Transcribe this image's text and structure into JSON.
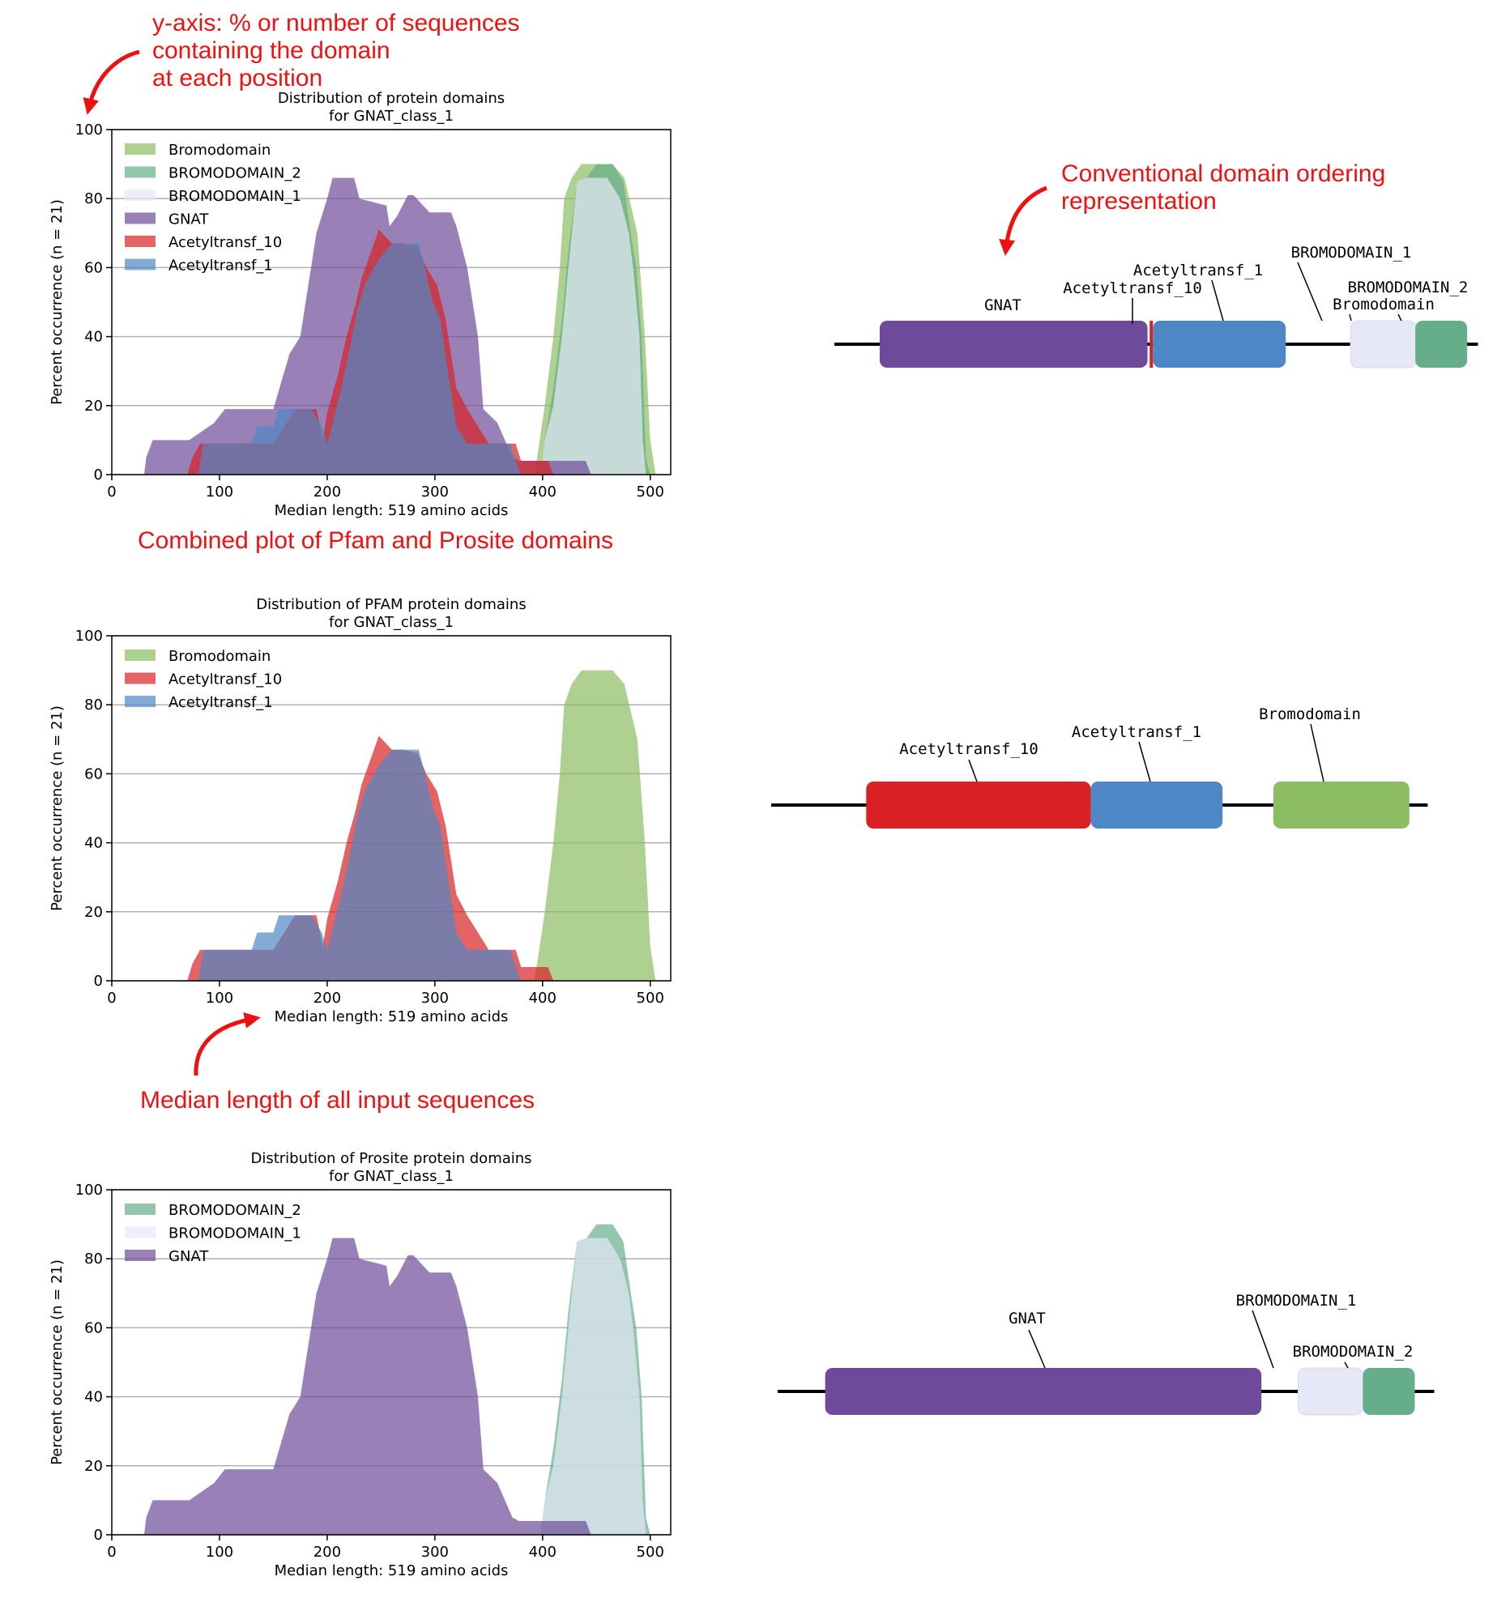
{
  "annotations": {
    "yaxis": [
      "y-axis: % or number of sequences",
      "containing the domain",
      "at each position"
    ],
    "combined": "Combined plot of Pfam and Prosite domains",
    "conventional": [
      "Conventional domain ordering",
      "representation"
    ],
    "median": "Median length of all input sequences"
  },
  "colors": {
    "Bromodomain": "#8cbd63",
    "BROMODOMAIN_2": "#66ae8a",
    "BROMODOMAIN_1": "#e6e8f8",
    "GNAT": "#6e4b9a",
    "Acetyltransf_10": "#d92123",
    "Acetyltransf_1": "#4e87c5"
  },
  "chart_data": [
    {
      "type": "area",
      "title": "Distribution of protein domains",
      "subtitle": "for GNAT_class_1",
      "xlabel": "Median length: 519 amino acids",
      "ylabel": "Percent occurrence (n = 21)",
      "xlim": [
        0,
        519
      ],
      "ylim": [
        0,
        100
      ],
      "xticks": [
        0,
        100,
        200,
        300,
        400,
        500
      ],
      "yticks": [
        0,
        20,
        40,
        60,
        80,
        100
      ],
      "grid": "y",
      "legend": "top-left",
      "series": [
        {
          "name": "Bromodomain",
          "x": [
            392,
            395,
            402,
            410,
            416,
            420,
            427,
            436,
            445,
            450,
            465,
            476,
            488,
            495,
            500,
            505
          ],
          "y": [
            0,
            5,
            20,
            40,
            60,
            80,
            86,
            90,
            90,
            90,
            90,
            86,
            70,
            40,
            10,
            0
          ]
        },
        {
          "name": "BROMODOMAIN_2",
          "x": [
            398,
            402,
            410,
            418,
            424,
            432,
            441,
            450,
            465,
            475,
            482,
            487,
            492,
            496,
            500
          ],
          "y": [
            0,
            10,
            25,
            45,
            65,
            85,
            86,
            90,
            90,
            85,
            70,
            60,
            40,
            5,
            0
          ]
        },
        {
          "name": "BROMODOMAIN_1",
          "x": [
            398,
            402,
            410,
            418,
            424,
            432,
            441,
            460,
            472,
            480,
            484,
            490,
            493,
            496
          ],
          "y": [
            0,
            10,
            20,
            40,
            60,
            85,
            86,
            86,
            80,
            70,
            60,
            40,
            10,
            0
          ]
        },
        {
          "name": "GNAT",
          "x": [
            30,
            32,
            38,
            72,
            95,
            105,
            150,
            165,
            175,
            180,
            185,
            190,
            200,
            205,
            225,
            230,
            255,
            258,
            265,
            275,
            280,
            295,
            315,
            320,
            330,
            335,
            340,
            345,
            358,
            365,
            372,
            378,
            380,
            440,
            445
          ],
          "y": [
            0,
            5,
            10,
            10,
            15,
            19,
            19,
            35,
            40,
            50,
            60,
            70,
            80,
            86,
            86,
            80,
            78,
            72,
            75,
            81,
            81,
            76,
            76,
            72,
            60,
            50,
            40,
            19,
            15,
            10,
            5,
            4,
            4,
            4,
            0
          ]
        },
        {
          "name": "Acetyltransf_10",
          "x": [
            70,
            75,
            82,
            92,
            100,
            120,
            150,
            170,
            190,
            196,
            200,
            210,
            218,
            226,
            232,
            240,
            248,
            260,
            270,
            284,
            292,
            302,
            310,
            320,
            330,
            350,
            365,
            375,
            380,
            398,
            405,
            410
          ],
          "y": [
            0,
            5,
            9,
            9,
            9,
            9,
            9,
            19,
            19,
            10,
            18,
            29,
            40,
            49,
            57,
            64,
            71,
            67,
            67,
            66,
            60,
            55,
            45,
            25,
            19,
            9,
            9,
            9,
            4,
            4,
            4,
            0
          ]
        },
        {
          "name": "Acetyltransf_1",
          "x": [
            80,
            85,
            130,
            135,
            150,
            155,
            170,
            185,
            195,
            200,
            213,
            222,
            228,
            235,
            247,
            260,
            285,
            290,
            298,
            305,
            313,
            320,
            330,
            340,
            370,
            375,
            380
          ],
          "y": [
            0,
            9,
            9,
            14,
            14,
            19,
            19,
            19,
            14,
            9,
            25,
            38,
            48,
            55,
            62,
            67,
            67,
            61,
            50,
            45,
            28,
            14,
            9,
            9,
            9,
            4,
            0
          ]
        }
      ]
    },
    {
      "type": "area",
      "title": "Distribution of PFAM protein domains",
      "subtitle": "for GNAT_class_1",
      "xlabel": "Median length: 519 amino acids",
      "ylabel": "Percent occurrence (n = 21)",
      "xlim": [
        0,
        519
      ],
      "ylim": [
        0,
        100
      ],
      "xticks": [
        0,
        100,
        200,
        300,
        400,
        500
      ],
      "yticks": [
        0,
        20,
        40,
        60,
        80,
        100
      ],
      "grid": "y",
      "legend": "top-left",
      "series": [
        {
          "name": "Bromodomain",
          "x": [
            392,
            395,
            402,
            410,
            416,
            420,
            427,
            436,
            445,
            450,
            465,
            476,
            488,
            495,
            500,
            505
          ],
          "y": [
            0,
            5,
            20,
            40,
            60,
            80,
            86,
            90,
            90,
            90,
            90,
            86,
            70,
            40,
            10,
            0
          ]
        },
        {
          "name": "Acetyltransf_10",
          "x": [
            70,
            75,
            82,
            92,
            100,
            120,
            150,
            170,
            190,
            196,
            200,
            210,
            218,
            226,
            232,
            240,
            248,
            260,
            270,
            284,
            292,
            302,
            310,
            320,
            330,
            350,
            365,
            375,
            380,
            398,
            405,
            410
          ],
          "y": [
            0,
            5,
            9,
            9,
            9,
            9,
            9,
            19,
            19,
            10,
            18,
            29,
            40,
            49,
            57,
            64,
            71,
            67,
            67,
            66,
            60,
            55,
            45,
            25,
            19,
            9,
            9,
            9,
            4,
            4,
            4,
            0
          ]
        },
        {
          "name": "Acetyltransf_1",
          "x": [
            80,
            85,
            130,
            135,
            150,
            155,
            170,
            185,
            195,
            200,
            213,
            222,
            228,
            235,
            247,
            260,
            285,
            290,
            298,
            305,
            313,
            320,
            330,
            340,
            370,
            375,
            380
          ],
          "y": [
            0,
            9,
            9,
            14,
            14,
            19,
            19,
            19,
            14,
            9,
            25,
            38,
            48,
            55,
            62,
            67,
            67,
            61,
            50,
            45,
            28,
            14,
            9,
            9,
            9,
            4,
            0
          ]
        }
      ]
    },
    {
      "type": "area",
      "title": "Distribution of Prosite protein domains",
      "subtitle": "for GNAT_class_1",
      "xlabel": "Median length: 519 amino acids",
      "ylabel": "Percent occurrence (n = 21)",
      "xlim": [
        0,
        519
      ],
      "ylim": [
        0,
        100
      ],
      "xticks": [
        0,
        100,
        200,
        300,
        400,
        500
      ],
      "yticks": [
        0,
        20,
        40,
        60,
        80,
        100
      ],
      "grid": "y",
      "legend": "top-left",
      "series": [
        {
          "name": "BROMODOMAIN_2",
          "x": [
            398,
            402,
            410,
            418,
            424,
            432,
            441,
            450,
            465,
            475,
            482,
            487,
            492,
            496,
            500
          ],
          "y": [
            0,
            10,
            25,
            45,
            65,
            85,
            86,
            90,
            90,
            85,
            70,
            60,
            40,
            5,
            0
          ]
        },
        {
          "name": "BROMODOMAIN_1",
          "x": [
            398,
            402,
            410,
            418,
            424,
            432,
            441,
            460,
            472,
            480,
            484,
            490,
            493,
            496
          ],
          "y": [
            0,
            10,
            20,
            40,
            60,
            85,
            86,
            86,
            80,
            70,
            60,
            40,
            10,
            0
          ]
        },
        {
          "name": "GNAT",
          "x": [
            30,
            32,
            38,
            72,
            95,
            105,
            150,
            165,
            175,
            180,
            185,
            190,
            200,
            205,
            225,
            230,
            255,
            258,
            265,
            275,
            280,
            295,
            315,
            320,
            330,
            335,
            340,
            345,
            358,
            365,
            372,
            378,
            380,
            440,
            445
          ],
          "y": [
            0,
            5,
            10,
            10,
            15,
            19,
            19,
            35,
            40,
            50,
            60,
            70,
            80,
            86,
            86,
            80,
            78,
            72,
            75,
            81,
            81,
            76,
            76,
            72,
            60,
            50,
            40,
            19,
            15,
            10,
            5,
            4,
            4,
            4,
            0
          ]
        }
      ]
    }
  ],
  "domain_diagrams": [
    {
      "domains": [
        {
          "name": "GNAT",
          "start": 42,
          "end": 290,
          "color": "GNAT",
          "label": "GNAT"
        },
        {
          "name": "Acetyltransf_10",
          "start": 292,
          "end": 295,
          "color": "Acetyltransf_10",
          "label": "Acetyltransf_10"
        },
        {
          "name": "Acetyltransf_1",
          "start": 295,
          "end": 418,
          "color": "Acetyltransf_1",
          "label": "Acetyltransf_1"
        },
        {
          "name": "BROMODOMAIN_1",
          "start": 478,
          "end": 539,
          "color": "BROMODOMAIN_1",
          "label": "BROMODOMAIN_1"
        },
        {
          "name": "BROMODOMAIN_2",
          "start": 538,
          "end": 586,
          "color": "BROMODOMAIN_2",
          "label": "BROMODOMAIN_2"
        },
        {
          "name": "Bromodomain",
          "start": 538,
          "end": 586,
          "color": "BROMODOMAIN_2",
          "label": "Bromodomain"
        }
      ]
    },
    {
      "domains": [
        {
          "name": "Acetyltransf_10",
          "start": 88,
          "end": 296,
          "color": "Acetyltransf_10",
          "label": "Acetyltransf_10"
        },
        {
          "name": "Acetyltransf_1",
          "start": 296,
          "end": 418,
          "color": "Acetyltransf_1",
          "label": "Acetyltransf_1"
        },
        {
          "name": "Bromodomain",
          "start": 465,
          "end": 591,
          "color": "Bromodomain",
          "label": "Bromodomain"
        }
      ]
    },
    {
      "domains": [
        {
          "name": "GNAT",
          "start": 44,
          "end": 448,
          "color": "GNAT",
          "label": "GNAT"
        },
        {
          "name": "BROMODOMAIN_1",
          "start": 482,
          "end": 542,
          "color": "BROMODOMAIN_1",
          "label": "BROMODOMAIN_1"
        },
        {
          "name": "BROMODOMAIN_2",
          "start": 542,
          "end": 590,
          "color": "BROMODOMAIN_2",
          "label": "BROMODOMAIN_2"
        }
      ]
    }
  ]
}
